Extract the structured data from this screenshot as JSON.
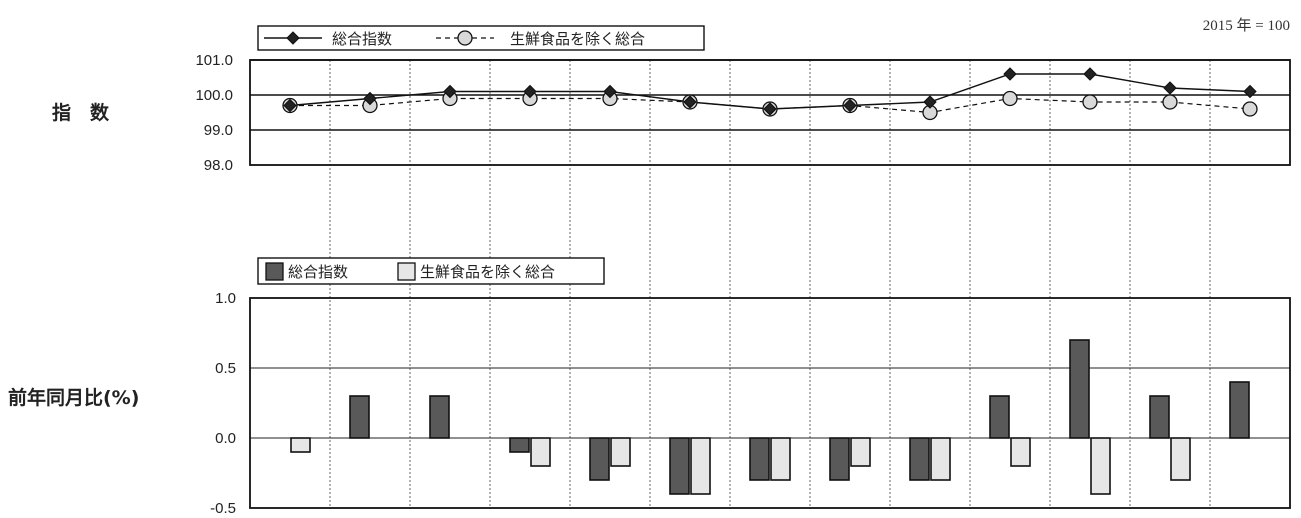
{
  "base_note": "2015 年 = 100",
  "chart_data": [
    {
      "type": "line",
      "ylabel": "指　数",
      "ylim": [
        98.0,
        101.0
      ],
      "yticks": [
        "101.0",
        "100.0",
        "99.0",
        "98.0"
      ],
      "x": [
        1,
        2,
        3,
        4,
        5,
        6,
        7,
        8,
        9,
        10,
        11,
        12,
        13
      ],
      "series": [
        {
          "name": "総合指数",
          "marker": "diamond",
          "line": "solid",
          "color": "#222222",
          "values": [
            99.7,
            99.9,
            100.1,
            100.1,
            100.1,
            99.8,
            99.6,
            99.7,
            99.8,
            100.6,
            100.6,
            100.2,
            100.1
          ]
        },
        {
          "name": "生鮮食品を除く総合",
          "marker": "circle",
          "line": "dashed",
          "color": "#d9d9d9",
          "values": [
            99.7,
            99.7,
            99.9,
            99.9,
            99.9,
            99.8,
            99.6,
            99.7,
            99.5,
            99.9,
            99.8,
            99.8,
            99.6
          ]
        }
      ],
      "legend_position": "top-left"
    },
    {
      "type": "bar",
      "ylabel": "前年同月比(%)",
      "ylim": [
        -0.5,
        1.0
      ],
      "yticks": [
        "1.0",
        "0.5",
        "0.0",
        "-0.5"
      ],
      "x": [
        1,
        2,
        3,
        4,
        5,
        6,
        7,
        8,
        9,
        10,
        11,
        12,
        13
      ],
      "series": [
        {
          "name": "総合指数",
          "color": "#595959",
          "values": [
            0.0,
            0.3,
            0.3,
            -0.1,
            -0.3,
            -0.4,
            -0.3,
            -0.3,
            -0.3,
            0.3,
            0.7,
            0.3,
            0.4
          ]
        },
        {
          "name": "生鮮食品を除く総合",
          "color": "#e6e6e6",
          "values": [
            -0.1,
            0.0,
            0.0,
            -0.2,
            -0.2,
            -0.4,
            -0.3,
            -0.2,
            -0.3,
            -0.2,
            -0.4,
            -0.3,
            0.0
          ]
        }
      ],
      "legend_position": "top-left"
    }
  ]
}
